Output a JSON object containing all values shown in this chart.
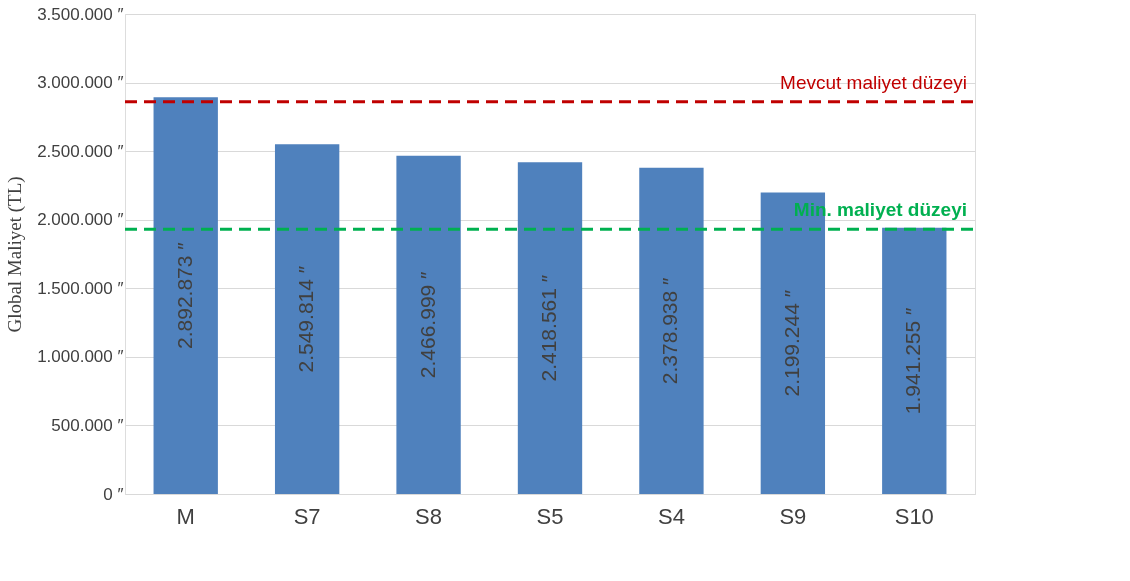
{
  "chart_data": {
    "type": "bar",
    "ylabel": "Global Maliyet (TL)",
    "categories": [
      "M",
      "S7",
      "S8",
      "S5",
      "S4",
      "S9",
      "S10"
    ],
    "values": [
      2892873,
      2549814,
      2466999,
      2418561,
      2378938,
      2199244,
      1941255
    ],
    "color": "#4f81bd",
    "value_labels": [
      "2.892.873 ″",
      "2.549.814 ″",
      "2.466.999 ″",
      "2.418.561 ″",
      "2.378.938 ″",
      "2.199.244 ″",
      "1.941.255 ″"
    ],
    "ylim": [
      0,
      3500000
    ],
    "yticks": [
      {
        "value": 0,
        "label": "0 ″"
      },
      {
        "value": 500000,
        "label": "500.000 ″"
      },
      {
        "value": 1000000,
        "label": "1.000.000 ″"
      },
      {
        "value": 1500000,
        "label": "1.500.000 ″"
      },
      {
        "value": 2000000,
        "label": "2.000.000 ″"
      },
      {
        "value": 2500000,
        "label": "2.500.000 ″"
      },
      {
        "value": 3000000,
        "label": "3.000.000 ″"
      },
      {
        "value": 3500000,
        "label": "3.500.000 ″"
      }
    ],
    "ref_lines": [
      {
        "axis": "y",
        "value": 2860000,
        "label": "Mevcut maliyet düzeyi",
        "color": "#c00000",
        "line_style": "dashed"
      },
      {
        "axis": "y",
        "value": 1930000,
        "label": "Min. maliyet düzeyi",
        "color": "#00b050",
        "line_style": "dashed"
      }
    ],
    "grid": "y"
  }
}
